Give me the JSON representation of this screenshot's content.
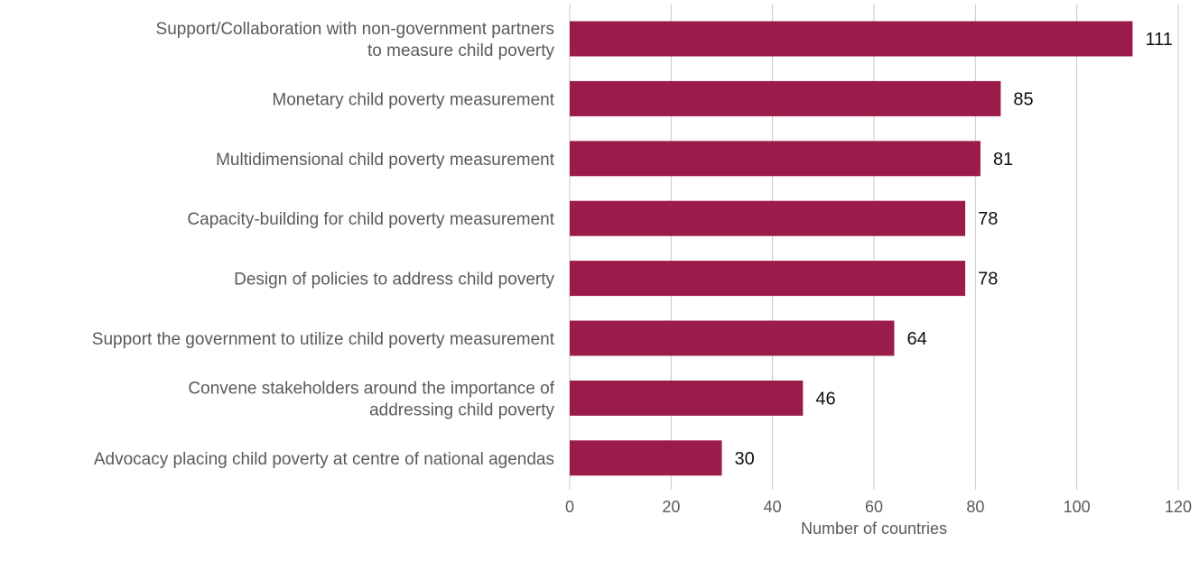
{
  "chart_data": {
    "type": "bar",
    "orientation": "horizontal",
    "categories": [
      [
        "Support/Collaboration with non-government partners",
        "to measure child poverty"
      ],
      [
        "Monetary child poverty measurement"
      ],
      [
        "Multidimensional child poverty measurement"
      ],
      [
        "Capacity-building for child poverty measurement"
      ],
      [
        "Design of policies to address child poverty"
      ],
      [
        "Support the government to utilize child poverty measurement"
      ],
      [
        "Convene stakeholders around the importance of",
        "addressing child poverty"
      ],
      [
        "Advocacy placing child poverty at centre of national agendas"
      ]
    ],
    "values": [
      111,
      85,
      81,
      78,
      78,
      64,
      46,
      30
    ],
    "data_labels": [
      "111",
      "85",
      "81",
      "78",
      "78",
      "64",
      "46",
      "30"
    ],
    "xlabel": "Number of countries",
    "xlim": [
      0,
      120
    ],
    "xticks": [
      0,
      20,
      40,
      60,
      80,
      100,
      120
    ],
    "xtick_labels": [
      "0",
      "20",
      "40",
      "60",
      "80",
      "100",
      "120"
    ],
    "grid": "vertical",
    "bar_color": "#9b1b4b",
    "legend": "none"
  }
}
